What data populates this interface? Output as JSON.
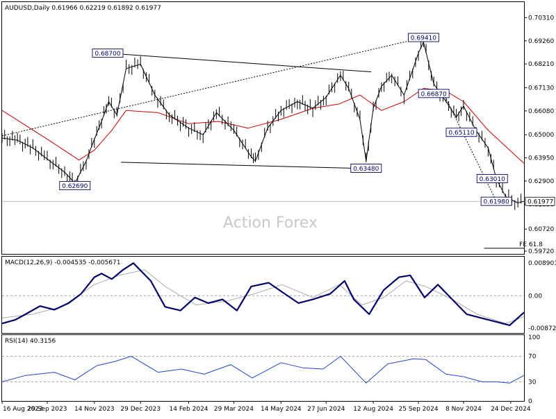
{
  "chart_data": [
    {
      "type": "candlestick",
      "panel": "price",
      "header": "AUDUSD,Daily  0.61966 0.62219 0.61892 0.61977",
      "watermark": "Action Forex",
      "ylim": [
        0.5972,
        0.7067
      ],
      "yticks": [
        "0.70310",
        "0.69260",
        "0.68210",
        "0.67130",
        "0.66080",
        "0.65000",
        "0.63950",
        "0.62900",
        "0.61850",
        "0.60720",
        "0.59720"
      ],
      "current_price_label": "0.61977",
      "current_price": 0.61977,
      "annotations": [
        {
          "text": "0.68700",
          "x": "2023-11-27",
          "y": 0.687
        },
        {
          "text": "0.69410",
          "x": "2024-09-30",
          "y": 0.6941
        },
        {
          "text": "0.62690",
          "x": "2023-10-26",
          "y": 0.6269
        },
        {
          "text": "0.63480",
          "x": "2024-08-05",
          "y": 0.6348
        },
        {
          "text": "0.66870",
          "x": "2024-10-10",
          "y": 0.6687
        },
        {
          "text": "0.65110",
          "x": "2024-11-06",
          "y": 0.6511
        },
        {
          "text": "0.63010",
          "x": "2024-12-06",
          "y": 0.6301
        },
        {
          "text": "0.61980",
          "x": "2024-12-10",
          "y": 0.6198
        },
        {
          "text": "FE 61.8",
          "x": "2024-12-31",
          "y": 0.5985
        }
      ],
      "series": [
        {
          "name": "close",
          "color": "#000000",
          "x": [
            "2023-08-16",
            "2023-08-31",
            "2023-09-15",
            "2023-09-29",
            "2023-10-16",
            "2023-10-26",
            "2023-11-06",
            "2023-11-14",
            "2023-11-21",
            "2023-11-28",
            "2023-12-06",
            "2023-12-15",
            "2023-12-29",
            "2024-01-12",
            "2024-01-26",
            "2024-02-14",
            "2024-02-28",
            "2024-03-12",
            "2024-03-29",
            "2024-04-15",
            "2024-04-19",
            "2024-05-01",
            "2024-05-14",
            "2024-05-30",
            "2024-06-14",
            "2024-06-27",
            "2024-07-11",
            "2024-07-19",
            "2024-07-30",
            "2024-08-05",
            "2024-08-12",
            "2024-08-20",
            "2024-08-30",
            "2024-09-11",
            "2024-09-25",
            "2024-09-30",
            "2024-10-10",
            "2024-10-22",
            "2024-11-01",
            "2024-11-08",
            "2024-11-20",
            "2024-12-02",
            "2024-12-10",
            "2024-12-19",
            "2024-12-31",
            "2025-01-06"
          ],
          "values": [
            0.6485,
            0.6475,
            0.644,
            0.639,
            0.633,
            0.628,
            0.638,
            0.648,
            0.656,
            0.665,
            0.659,
            0.68,
            0.682,
            0.668,
            0.659,
            0.653,
            0.65,
            0.66,
            0.652,
            0.64,
            0.638,
            0.653,
            0.661,
            0.665,
            0.662,
            0.667,
            0.677,
            0.671,
            0.657,
            0.638,
            0.662,
            0.672,
            0.677,
            0.668,
            0.687,
            0.692,
            0.673,
            0.665,
            0.658,
            0.663,
            0.652,
            0.644,
            0.63,
            0.622,
            0.619,
            0.6198
          ]
        },
        {
          "name": "MA",
          "color": "#cc0000",
          "x": [
            "2023-08-16",
            "2023-09-29",
            "2023-10-30",
            "2023-11-14",
            "2023-12-01",
            "2023-12-15",
            "2024-01-15",
            "2024-02-14",
            "2024-03-14",
            "2024-04-12",
            "2024-05-14",
            "2024-06-14",
            "2024-07-10",
            "2024-07-30",
            "2024-08-20",
            "2024-09-11",
            "2024-09-30",
            "2024-10-21",
            "2024-11-08",
            "2024-12-02",
            "2025-01-06"
          ],
          "values": [
            0.661,
            0.648,
            0.6385,
            0.643,
            0.652,
            0.661,
            0.66,
            0.655,
            0.656,
            0.653,
            0.657,
            0.662,
            0.664,
            0.668,
            0.661,
            0.665,
            0.671,
            0.67,
            0.665,
            0.652,
            0.637
          ]
        }
      ],
      "lines": [
        {
          "from": [
            "2023-11-27",
            0.687
          ],
          "to": [
            "2024-08-10",
            0.6785
          ],
          "style": "solid"
        },
        {
          "from": [
            "2023-12-10",
            0.6375
          ],
          "to": [
            "2024-08-19",
            0.6345
          ],
          "style": "solid"
        },
        {
          "from": [
            "2023-08-16",
            0.6495
          ],
          "to": [
            "2024-09-30",
            0.6941
          ],
          "style": "dotted"
        },
        {
          "from": [
            "2024-10-21",
            0.6673
          ],
          "to": [
            "2024-12-10",
            0.6198
          ],
          "style": "dotted"
        },
        {
          "from": [
            "2024-11-28",
            0.5985
          ],
          "to": [
            "2025-01-06",
            0.5985
          ],
          "style": "solid"
        }
      ]
    },
    {
      "type": "line",
      "panel": "macd",
      "header": "MACD(12,26,9) -0.004535 -0.005671",
      "ylim": [
        -0.0097,
        0.0098
      ],
      "yticks": [
        "0.008901",
        "0.00",
        "-0.008729"
      ],
      "series": [
        {
          "name": "MACD",
          "color": "#000066",
          "x": [
            "2023-08-16",
            "2023-08-29",
            "2023-09-08",
            "2023-09-22",
            "2023-10-06",
            "2023-10-20",
            "2023-11-01",
            "2023-11-14",
            "2023-11-21",
            "2023-12-01",
            "2023-12-12",
            "2023-12-22",
            "2024-01-08",
            "2024-01-22",
            "2024-02-06",
            "2024-02-20",
            "2024-03-04",
            "2024-03-18",
            "2024-04-01",
            "2024-04-15",
            "2024-05-02",
            "2024-05-15",
            "2024-05-31",
            "2024-06-14",
            "2024-07-01",
            "2024-07-15",
            "2024-07-24",
            "2024-08-08",
            "2024-08-22",
            "2024-09-06",
            "2024-09-17",
            "2024-10-01",
            "2024-10-14",
            "2024-10-28",
            "2024-11-11",
            "2024-11-25",
            "2024-12-09",
            "2024-12-23",
            "2025-01-06"
          ],
          "values": [
            -0.0075,
            -0.0065,
            -0.005,
            -0.0028,
            -0.0038,
            -0.002,
            0.0005,
            0.005,
            0.006,
            0.0045,
            0.007,
            0.0088,
            0.004,
            -0.003,
            -0.004,
            -0.0005,
            -0.002,
            -0.001,
            -0.004,
            0.0025,
            0.0035,
            0.001,
            -0.002,
            -0.001,
            0.0005,
            0.004,
            -0.001,
            -0.005,
            0.0015,
            0.005,
            0.0055,
            -0.0005,
            0.003,
            -0.001,
            -0.005,
            -0.006,
            -0.007,
            -0.008,
            -0.0045
          ]
        },
        {
          "name": "Signal",
          "color": "#aaaaaa",
          "x": [
            "2023-08-16",
            "2023-09-15",
            "2023-10-13",
            "2023-11-14",
            "2023-12-08",
            "2024-01-02",
            "2024-01-22",
            "2024-02-21",
            "2024-03-21",
            "2024-04-18",
            "2024-05-15",
            "2024-06-14",
            "2024-07-10",
            "2024-08-01",
            "2024-08-22",
            "2024-09-13",
            "2024-10-02",
            "2024-10-28",
            "2024-11-21",
            "2024-12-19",
            "2025-01-06"
          ],
          "values": [
            -0.006,
            -0.005,
            -0.003,
            0.003,
            0.0055,
            0.007,
            0.0025,
            -0.0025,
            -0.0015,
            0.0005,
            0.003,
            -0.0005,
            0.003,
            -0.0025,
            -0.0005,
            0.004,
            0.0025,
            -0.001,
            -0.005,
            -0.0075,
            -0.0057
          ]
        }
      ]
    },
    {
      "type": "line",
      "panel": "rsi",
      "header": "RSI(14) 40.3156",
      "ylim": [
        0,
        100
      ],
      "yticks": [
        "100",
        "70",
        "30",
        "0"
      ],
      "levels": [
        70,
        30
      ],
      "series": [
        {
          "name": "RSI",
          "color": "#2244cc",
          "x": [
            "2023-08-16",
            "2023-09-08",
            "2023-10-06",
            "2023-10-26",
            "2023-11-16",
            "2023-12-04",
            "2023-12-20",
            "2024-01-15",
            "2024-02-07",
            "2024-02-29",
            "2024-03-26",
            "2024-04-16",
            "2024-05-14",
            "2024-06-04",
            "2024-06-24",
            "2024-07-11",
            "2024-08-05",
            "2024-08-26",
            "2024-09-20",
            "2024-10-02",
            "2024-10-22",
            "2024-11-08",
            "2024-11-26",
            "2024-12-10",
            "2024-12-23",
            "2025-01-06"
          ],
          "values": [
            30,
            40,
            45,
            33,
            55,
            62,
            70,
            45,
            50,
            42,
            57,
            36,
            60,
            52,
            50,
            70,
            28,
            58,
            66,
            65,
            42,
            38,
            30,
            30,
            28,
            40
          ]
        }
      ]
    }
  ],
  "x_axis": {
    "range": [
      "2023-08-16",
      "2025-01-06"
    ],
    "labels": [
      "16 Aug 2023",
      "29 Sep 2023",
      "14 Nov 2023",
      "29 Dec 2023",
      "14 Feb 2024",
      "29 Mar 2024",
      "14 May 2024",
      "27 Jun 2024",
      "12 Aug 2024",
      "25 Sep 2024",
      "8 Nov 2024",
      "24 Dec 2024"
    ]
  }
}
